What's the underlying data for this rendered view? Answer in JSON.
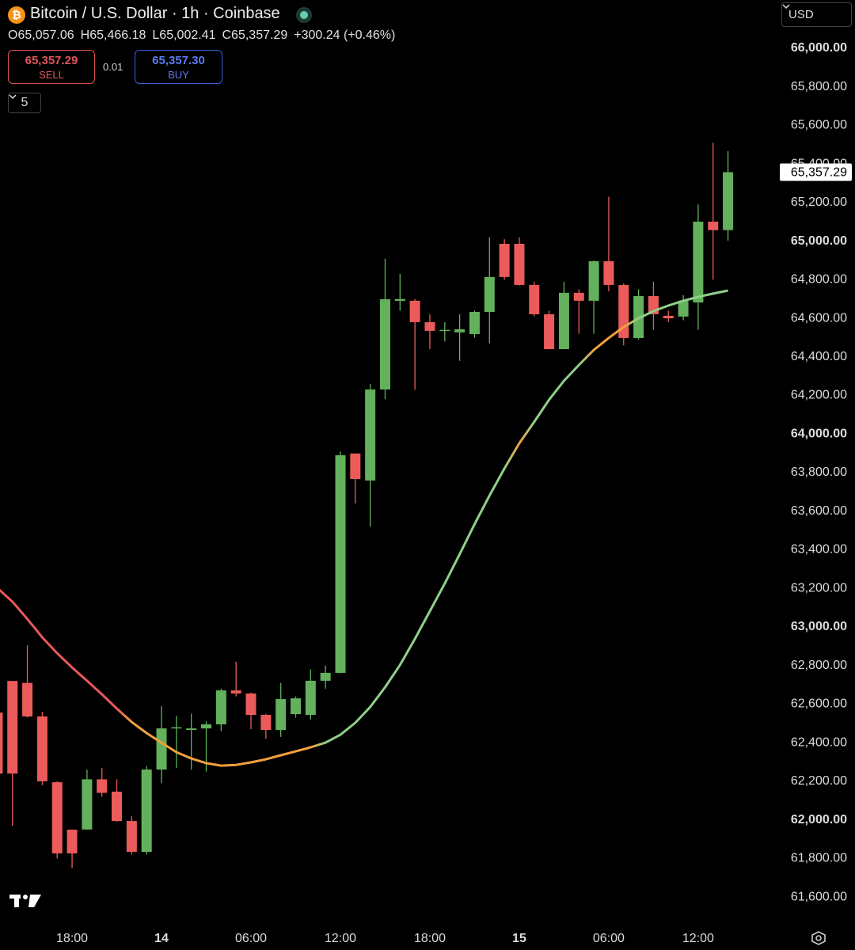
{
  "header": {
    "title": "Bitcoin / U.S. Dollar · 1h · Coinbase",
    "currency": "USD",
    "ohlc": [
      {
        "label": "O",
        "value": "65,057.06"
      },
      {
        "label": "H",
        "value": "65,466.18"
      },
      {
        "label": "L",
        "value": "65,002.41"
      },
      {
        "label": "C",
        "value": "65,357.29"
      }
    ],
    "change": "+300.24 (+0.46%)",
    "sell": {
      "price": "65,357.29",
      "label": "SELL"
    },
    "spread": "0.01",
    "buy": {
      "price": "65,357.30",
      "label": "BUY"
    },
    "indicators": "5"
  },
  "chart_data": {
    "type": "candlestick",
    "up_color": "#63b15c",
    "down_color": "#ec5b5b",
    "grid": false,
    "categories": [
      null,
      null,
      null,
      null,
      null,
      "18:00",
      null,
      null,
      null,
      null,
      null,
      "14",
      null,
      null,
      null,
      null,
      null,
      "06:00",
      null,
      null,
      null,
      null,
      null,
      "12:00",
      null,
      null,
      null,
      null,
      null,
      "18:00",
      null,
      null,
      null,
      null,
      null,
      "15",
      null,
      null,
      null,
      null,
      null,
      "06:00",
      null,
      null,
      null,
      null,
      null,
      "12:00",
      null,
      null
    ],
    "open": [
      62556,
      62720,
      62710,
      62536,
      62195,
      61949,
      61950,
      62210,
      62146,
      61994,
      61834,
      62261,
      62474,
      62466,
      62474,
      62495,
      62671,
      62655,
      62544,
      62466,
      62548,
      62544,
      62721,
      62762,
      63899,
      63759,
      64231,
      64690,
      64691,
      64580,
      64535,
      64527,
      64518,
      64633,
      64986,
      64986,
      64773,
      64621,
      64440,
      64732,
      64691,
      64896,
      64773,
      64498,
      64715,
      64613,
      64609,
      64682,
      65101,
      65057.06
    ],
    "high": [
      62580,
      62720,
      62905,
      62560,
      62200,
      61950,
      62260,
      62270,
      62210,
      62020,
      62280,
      62590,
      62540,
      62550,
      62510,
      62680,
      62820,
      62660,
      62550,
      62710,
      62640,
      62780,
      62800,
      63910,
      63900,
      64260,
      64910,
      64830,
      64700,
      64620,
      64580,
      64620,
      64640,
      65020,
      65010,
      65020,
      64790,
      64640,
      64790,
      64750,
      64900,
      65230,
      64780,
      64750,
      64790,
      64640,
      64720,
      65190,
      65510,
      65466.18
    ],
    "low": [
      62200,
      61970,
      62530,
      62180,
      61800,
      61750,
      61950,
      62120,
      61990,
      61820,
      61820,
      62190,
      62270,
      62260,
      62250,
      62460,
      62640,
      62470,
      62420,
      62430,
      62530,
      62520,
      62680,
      62760,
      63640,
      63520,
      64180,
      64640,
      64230,
      64440,
      64480,
      64380,
      64500,
      64470,
      64800,
      64770,
      64610,
      64440,
      64440,
      64520,
      64520,
      64740,
      64460,
      64490,
      64540,
      64580,
      64590,
      64540,
      64800,
      65002.41
    ],
    "close": [
      62240,
      62240,
      62536,
      62200,
      61826,
      61826,
      62210,
      62140,
      61994,
      61834,
      62261,
      62474,
      62480,
      62474,
      62495,
      62671,
      62655,
      62544,
      62466,
      62626,
      62630,
      62721,
      62762,
      63890,
      63767,
      64231,
      64699,
      64700,
      64580,
      64535,
      64540,
      64543,
      64633,
      64814,
      64814,
      64773,
      64621,
      64440,
      64732,
      64691,
      64896,
      64773,
      64498,
      64715,
      64621,
      64600,
      64691,
      65101,
      65057,
      65357.29
    ],
    "ma": {
      "values": [
        63201,
        63131,
        63041,
        62946,
        62864,
        62790,
        62721,
        62651,
        62577,
        62507,
        62450,
        62400,
        62351,
        62318,
        62294,
        62281,
        62285,
        62298,
        62314,
        62335,
        62355,
        62376,
        62400,
        62441,
        62503,
        62585,
        62688,
        62803,
        62938,
        63082,
        63225,
        63377,
        63533,
        63681,
        63821,
        63952,
        64063,
        64178,
        64276,
        64358,
        64436,
        64498,
        64555,
        64600,
        64637,
        64666,
        64691,
        64711,
        64728,
        64744
      ],
      "colors": [
        "#e8585c",
        "#e8585c",
        "#e8585c",
        "#e8585c",
        "#e8585c",
        "#e8585c",
        "#e8585c",
        "#e8585c",
        "#e8585c",
        "#f2a03d",
        "#f2a03d",
        "#f2a03d",
        "#f2a03d",
        "#f2a03d",
        "#f2a03d",
        "#f2a03d",
        "#f2a03d",
        "#f2a03d",
        "#f2a03d",
        "#f2a03d",
        "#f2a03d",
        "#f2a03d",
        "#8fcf8a",
        "#8fcf8a",
        "#8fcf8a",
        "#8fcf8a",
        "#8fcf8a",
        "#8fcf8a",
        "#8fcf8a",
        "#8fcf8a",
        "#8fcf8a",
        "#8fcf8a",
        "#8fcf8a",
        "#8fcf8a",
        "#8fcf8a",
        "#f2a03d",
        "#8fcf8a",
        "#8fcf8a",
        "#8fcf8a",
        "#8fcf8a",
        "#f2a03d",
        "#f2a03d",
        "#f2a03d",
        "#8fcf8a",
        "#8fcf8a",
        "#8fcf8a",
        "#8fcf8a",
        "#8fcf8a",
        "#8fcf8a",
        "#8fcf8a"
      ]
    },
    "last_price_label": "65,357.29",
    "ylim": [
      61469,
      66250
    ],
    "yticks": [
      {
        "value": 61600,
        "label": "61,600.00"
      },
      {
        "value": 61800,
        "label": "61,800.00"
      },
      {
        "value": 62000,
        "label": "62,000.00"
      },
      {
        "value": 62200,
        "label": "62,200.00"
      },
      {
        "value": 62400,
        "label": "62,400.00"
      },
      {
        "value": 62600,
        "label": "62,600.00"
      },
      {
        "value": 62800,
        "label": "62,800.00"
      },
      {
        "value": 63000,
        "label": "63,000.00"
      },
      {
        "value": 63200,
        "label": "63,200.00"
      },
      {
        "value": 63400,
        "label": "63,400.00"
      },
      {
        "value": 63600,
        "label": "63,600.00"
      },
      {
        "value": 63800,
        "label": "63,800.00"
      },
      {
        "value": 64000,
        "label": "64,000.00"
      },
      {
        "value": 64200,
        "label": "64,200.00"
      },
      {
        "value": 64400,
        "label": "64,400.00"
      },
      {
        "value": 64600,
        "label": "64,600.00"
      },
      {
        "value": 64800,
        "label": "64,800.00"
      },
      {
        "value": 65000,
        "label": "65,000.00"
      },
      {
        "value": 65200,
        "label": "65,200.00"
      },
      {
        "value": 65400,
        "label": "65,400.00"
      },
      {
        "value": 65600,
        "label": "65,600.00"
      },
      {
        "value": 65800,
        "label": "65,800.00"
      },
      {
        "value": 66000,
        "label": "66,000.00"
      }
    ]
  }
}
